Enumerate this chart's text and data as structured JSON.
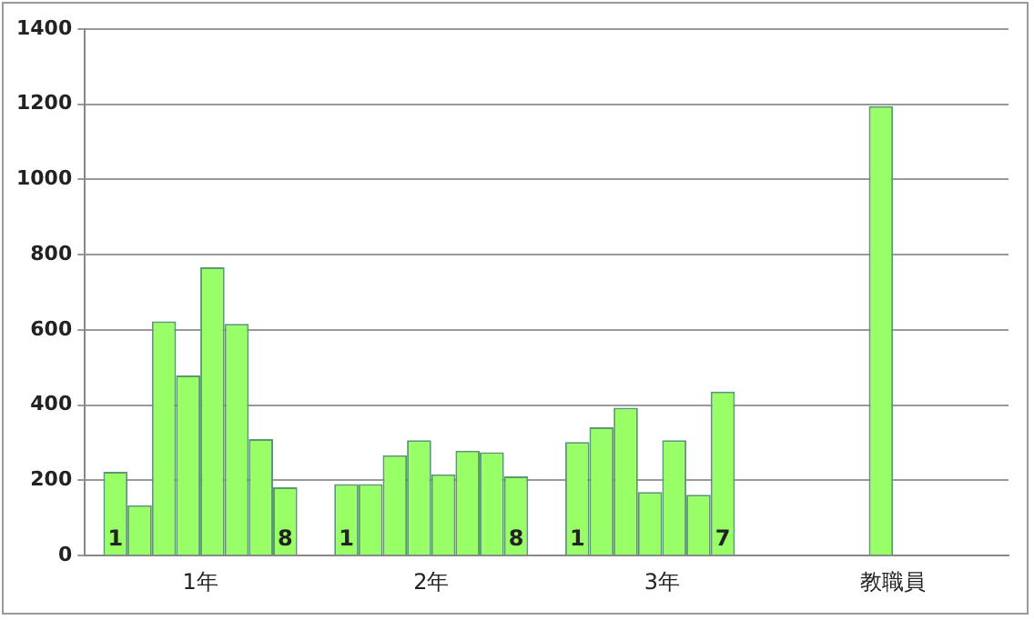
{
  "chart_data": {
    "type": "bar",
    "categories": [
      "1年",
      "2年",
      "3年",
      "教職員"
    ],
    "series": [
      {
        "name": "1",
        "color": "#99ff66",
        "values": [
          223,
          190,
          302,
          null
        ]
      },
      {
        "color": "#99ff66",
        "values": [
          134,
          190,
          341,
          null
        ]
      },
      {
        "color": "#99ff66",
        "values": [
          623,
          267,
          393,
          null
        ]
      },
      {
        "color": "#99ff66",
        "values": [
          479,
          307,
          169,
          1195
        ]
      },
      {
        "color": "#99ff66",
        "values": [
          767,
          216,
          307,
          null
        ]
      },
      {
        "color": "#99ff66",
        "values": [
          616,
          279,
          162,
          null
        ]
      },
      {
        "name": "7",
        "color": "#99ff66",
        "values": [
          310,
          275,
          436,
          null
        ]
      },
      {
        "name": "8",
        "color": "#99ff66",
        "values": [
          182,
          211,
          null,
          null
        ]
      }
    ],
    "ylim": [
      0,
      1400
    ],
    "yticks": [
      0,
      200,
      400,
      600,
      800,
      1000,
      1200,
      1400
    ],
    "grid": "y",
    "legend": false
  }
}
